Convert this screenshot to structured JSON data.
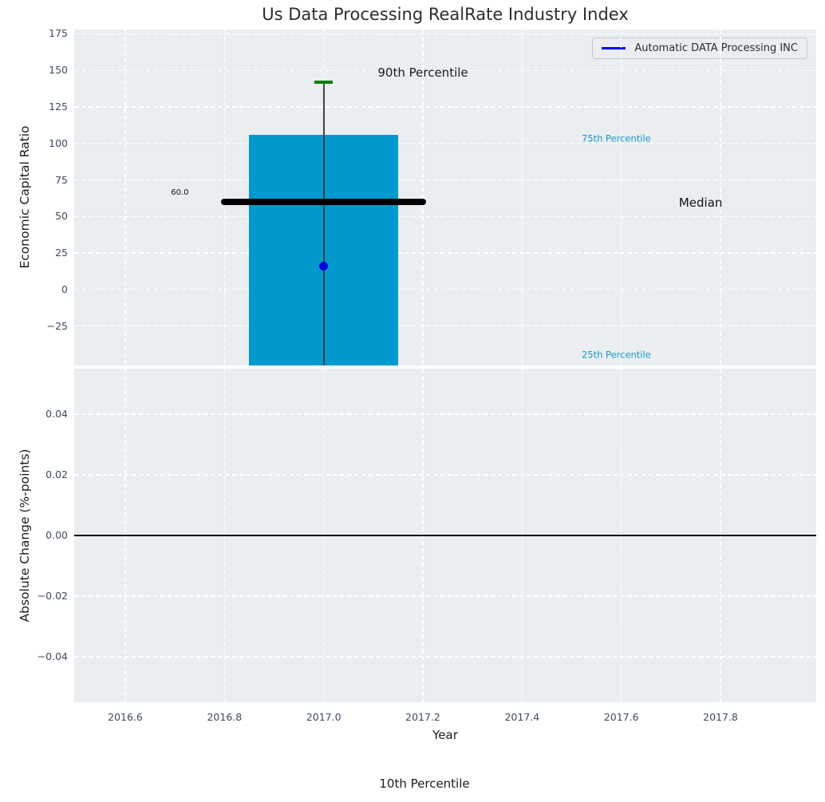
{
  "figure": {
    "title": "Us Data Processing RealRate Industry Index",
    "footnote": "10th Percentile"
  },
  "legend": {
    "label": "Automatic DATA Processing INC",
    "line_color": "#0000ff"
  },
  "colors": {
    "plot_bg": "#eaeef0",
    "grid": "#ffffff",
    "bar": "#0099cd",
    "cap_green": "#0c7e0c",
    "whisker": "#424242",
    "median_line": "#000000",
    "point_blue": "#0000dd",
    "percentile_text": "#1899ce",
    "tick_text": "#3e4a5a",
    "zero_line": "#0a0a0a"
  },
  "chart_data": [
    {
      "id": "economic-capital-ratio",
      "type": "bar",
      "title": "Us Data Processing RealRate Industry Index",
      "ylabel": "Economic Capital Ratio",
      "ylim": [
        -52,
        178
      ],
      "yticks": [
        {
          "v": 175,
          "label": "175"
        },
        {
          "v": 150,
          "label": "150"
        },
        {
          "v": 125,
          "label": "125"
        },
        {
          "v": 100,
          "label": "100"
        },
        {
          "v": 75,
          "label": "75"
        },
        {
          "v": 50,
          "label": "50"
        },
        {
          "v": 25,
          "label": "25"
        },
        {
          "v": 0,
          "label": "0"
        },
        {
          "v": -25,
          "label": "−25"
        }
      ],
      "xlim": [
        2016.497,
        2017.993
      ],
      "xticks": [
        {
          "v": 2016.6,
          "label": "2016.6"
        },
        {
          "v": 2016.8,
          "label": "2016.8"
        },
        {
          "v": 2017.0,
          "label": "2017.0"
        },
        {
          "v": 2017.2,
          "label": "2017.2"
        },
        {
          "v": 2017.4,
          "label": "2017.4"
        },
        {
          "v": 2017.6,
          "label": "2017.6"
        },
        {
          "v": 2017.8,
          "label": "2017.8"
        }
      ],
      "grid": true,
      "legend_position": "upper right",
      "box": {
        "x": 2017.0,
        "bar_width_years": 0.3,
        "p90": 142,
        "p75": 106,
        "median": 60.0,
        "median_label": "60.0",
        "p25_clipped_at_axis_bottom": true,
        "p10_below_axis": true,
        "median_span": [
          2016.8,
          2017.2
        ]
      },
      "company_point": {
        "name": "Automatic DATA Processing INC",
        "x": 2017.0,
        "y": 16
      },
      "annotations": [
        {
          "text": "90th Percentile",
          "x": 2017.2,
          "y": 148,
          "color": "#1b1b1b",
          "size": 15,
          "align": "center"
        },
        {
          "text": "75th Percentile",
          "x": 2017.52,
          "y": 103,
          "color": "#1899ce",
          "size": 11.5,
          "align": "left"
        },
        {
          "text": "Median",
          "x": 2017.76,
          "y": 59,
          "color": "#111111",
          "size": 15,
          "align": "center"
        },
        {
          "text": "25th Percentile",
          "x": 2017.52,
          "y": -45,
          "color": "#1899ce",
          "size": 11.5,
          "align": "left"
        },
        {
          "text": "60.0",
          "x": 2016.71,
          "y": 66,
          "color": "#111111",
          "size": 10,
          "align": "center"
        }
      ]
    },
    {
      "id": "absolute-change",
      "type": "line",
      "ylabel": "Absolute Change (%-points)",
      "xlabel": "Year",
      "ylim": [
        -0.055,
        0.055
      ],
      "yticks": [
        {
          "v": 0.04,
          "label": "0.04"
        },
        {
          "v": 0.02,
          "label": "0.02"
        },
        {
          "v": 0.0,
          "label": "0.00"
        },
        {
          "v": -0.02,
          "label": "−0.02"
        },
        {
          "v": -0.04,
          "label": "−0.04"
        }
      ],
      "xlim": [
        2016.497,
        2017.993
      ],
      "xticks": [
        {
          "v": 2016.6,
          "label": "2016.6"
        },
        {
          "v": 2016.8,
          "label": "2016.8"
        },
        {
          "v": 2017.0,
          "label": "2017.0"
        },
        {
          "v": 2017.2,
          "label": "2017.2"
        },
        {
          "v": 2017.4,
          "label": "2017.4"
        },
        {
          "v": 2017.6,
          "label": "2017.6"
        },
        {
          "v": 2017.8,
          "label": "2017.8"
        }
      ],
      "grid": true,
      "zero_line": 0.0,
      "series": []
    }
  ]
}
